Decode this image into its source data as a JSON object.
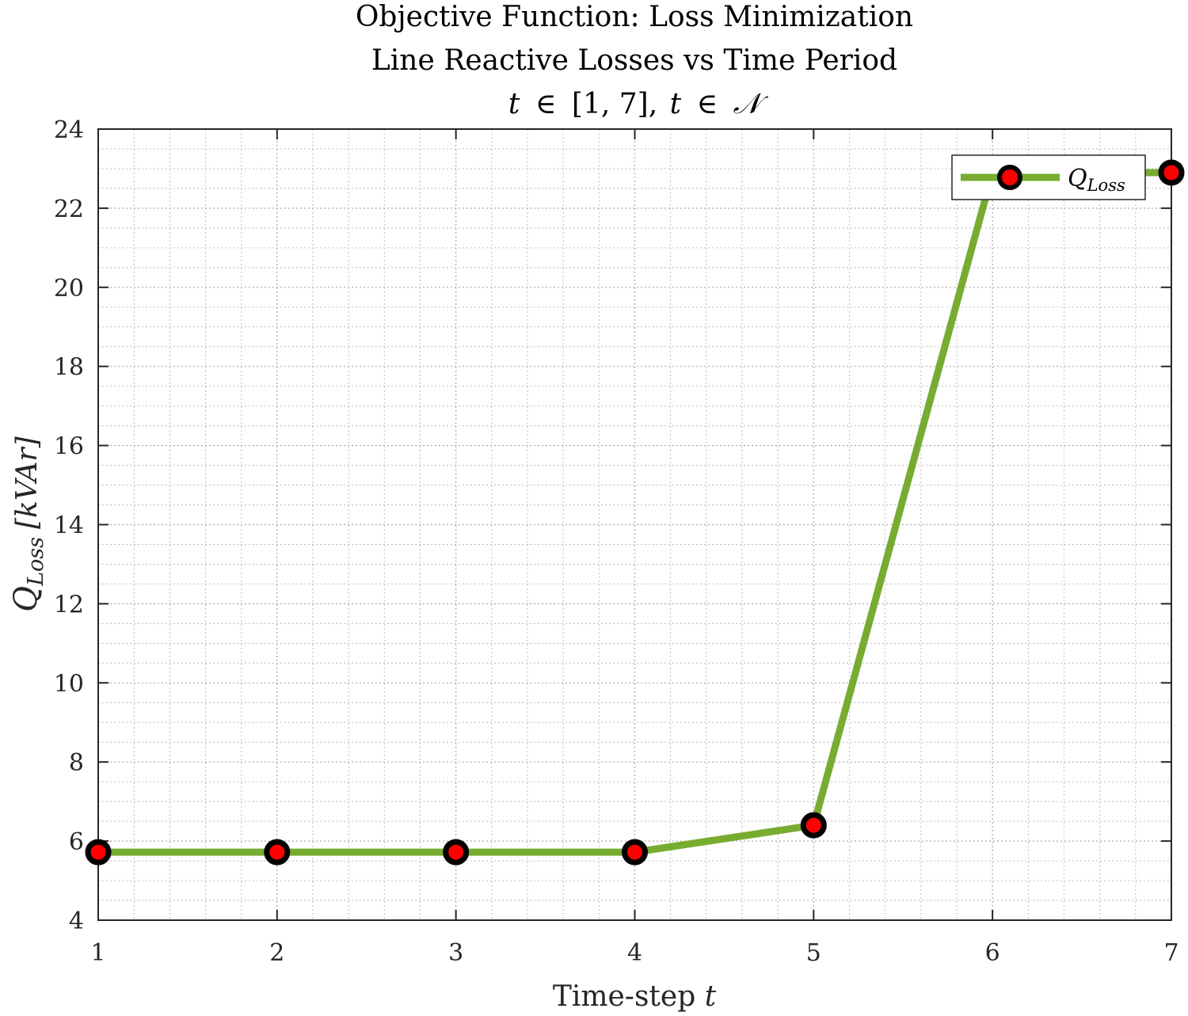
{
  "chart_data": {
    "type": "line",
    "title_lines": [
      "Objective Function: Loss Minimization",
      "Line Reactive Losses vs Time Period"
    ],
    "title_math": {
      "var": "t",
      "in_symbol": "∈",
      "interval": "[1, 7],",
      "set": "𝒩"
    },
    "xlabel": {
      "text": "Time-step ",
      "var": "t"
    },
    "ylabel": {
      "var": "Q",
      "sub": "Loss",
      "unit": "[kVAr]"
    },
    "x": [
      1,
      2,
      3,
      4,
      5,
      6,
      7
    ],
    "xlim": [
      1,
      7
    ],
    "ylim": [
      4,
      24
    ],
    "xticks": [
      1,
      2,
      3,
      4,
      5,
      6,
      7
    ],
    "yticks": [
      4,
      6,
      8,
      10,
      12,
      14,
      16,
      18,
      20,
      22,
      24
    ],
    "grid": true,
    "minor_grid": true,
    "legend_placement": "top-right",
    "series": [
      {
        "name": "Q_Loss",
        "legend_var": "Q",
        "legend_sub": "Loss",
        "values": [
          5.72,
          5.72,
          5.72,
          5.72,
          6.4,
          22.9,
          22.9
        ],
        "line_color": "#77AC30",
        "marker_edge": "#000000",
        "marker_fill": "#FF0000"
      }
    ]
  }
}
